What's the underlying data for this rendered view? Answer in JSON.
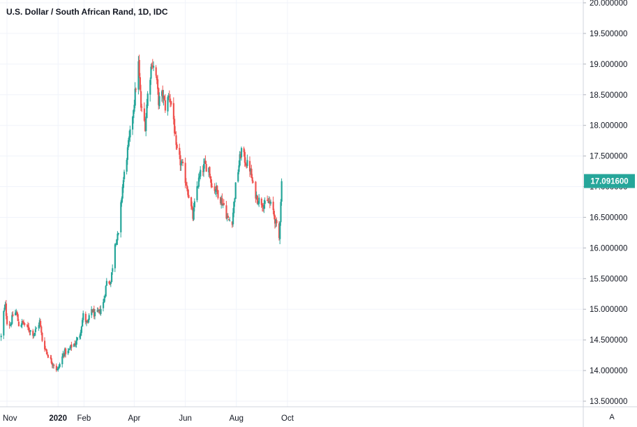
{
  "chart_data": {
    "type": "candlestick",
    "title": "U.S. Dollar / South African Rand, 1D, IDC",
    "ylim": [
      13.5,
      20.0
    ],
    "yticks": [
      "13.500000",
      "14.000000",
      "14.500000",
      "15.000000",
      "15.500000",
      "16.000000",
      "16.500000",
      "17.000000",
      "17.500000",
      "18.000000",
      "18.500000",
      "19.000000",
      "19.500000",
      "20.000000"
    ],
    "xticks": [
      {
        "label": "Nov",
        "date": "2019-11-01",
        "bold": false
      },
      {
        "label": "2020",
        "date": "2020-01-01",
        "bold": true
      },
      {
        "label": "Feb",
        "date": "2020-02-01",
        "bold": false
      },
      {
        "label": "Apr",
        "date": "2020-04-01",
        "bold": false
      },
      {
        "label": "Jun",
        "date": "2020-06-01",
        "bold": false
      },
      {
        "label": "Aug",
        "date": "2020-08-01",
        "bold": false
      },
      {
        "label": "Oct",
        "date": "2020-10-01",
        "bold": false
      }
    ],
    "last_price": "17.091600",
    "last_value": 17.0916,
    "up_color": "#26a69a",
    "down_color": "#ef5350",
    "close_path": [
      [
        "2019-10-25",
        14.55
      ],
      [
        "2019-10-28",
        14.95
      ],
      [
        "2019-10-30",
        15.05
      ],
      [
        "2019-11-01",
        14.8
      ],
      [
        "2019-11-05",
        14.75
      ],
      [
        "2019-11-08",
        14.9
      ],
      [
        "2019-11-12",
        14.95
      ],
      [
        "2019-11-15",
        14.75
      ],
      [
        "2019-11-20",
        14.78
      ],
      [
        "2019-11-25",
        14.7
      ],
      [
        "2019-11-29",
        14.65
      ],
      [
        "2019-12-03",
        14.6
      ],
      [
        "2019-12-06",
        14.68
      ],
      [
        "2019-12-10",
        14.8
      ],
      [
        "2019-12-13",
        14.5
      ],
      [
        "2019-12-17",
        14.35
      ],
      [
        "2019-12-20",
        14.25
      ],
      [
        "2019-12-24",
        14.15
      ],
      [
        "2019-12-27",
        14.1
      ],
      [
        "2019-12-31",
        14.0
      ],
      [
        "2020-01-03",
        14.1
      ],
      [
        "2020-01-08",
        14.3
      ],
      [
        "2020-01-13",
        14.3
      ],
      [
        "2020-01-17",
        14.4
      ],
      [
        "2020-01-22",
        14.45
      ],
      [
        "2020-01-27",
        14.6
      ],
      [
        "2020-01-31",
        14.9
      ],
      [
        "2020-02-05",
        14.75
      ],
      [
        "2020-02-10",
        15.0
      ],
      [
        "2020-02-14",
        14.9
      ],
      [
        "2020-02-19",
        14.95
      ],
      [
        "2020-02-24",
        15.1
      ],
      [
        "2020-02-28",
        15.45
      ],
      [
        "2020-03-04",
        15.45
      ],
      [
        "2020-03-09",
        16.1
      ],
      [
        "2020-03-13",
        16.2
      ],
      [
        "2020-03-18",
        17.0
      ],
      [
        "2020-03-23",
        17.5
      ],
      [
        "2020-03-27",
        17.85
      ],
      [
        "2020-04-01",
        18.4
      ],
      [
        "2020-04-06",
        19.0
      ],
      [
        "2020-04-09",
        18.3
      ],
      [
        "2020-04-14",
        18.0
      ],
      [
        "2020-04-17",
        18.5
      ],
      [
        "2020-04-22",
        19.05
      ],
      [
        "2020-04-27",
        18.8
      ],
      [
        "2020-04-30",
        18.4
      ],
      [
        "2020-05-05",
        18.5
      ],
      [
        "2020-05-08",
        18.3
      ],
      [
        "2020-05-13",
        18.5
      ],
      [
        "2020-05-18",
        18.1
      ],
      [
        "2020-05-21",
        17.6
      ],
      [
        "2020-05-26",
        17.4
      ],
      [
        "2020-05-29",
        17.3
      ],
      [
        "2020-06-03",
        17.0
      ],
      [
        "2020-06-08",
        16.65
      ],
      [
        "2020-06-10",
        16.5
      ],
      [
        "2020-06-15",
        17.0
      ],
      [
        "2020-06-19",
        17.2
      ],
      [
        "2020-06-24",
        17.35
      ],
      [
        "2020-06-29",
        17.3
      ],
      [
        "2020-07-03",
        17.0
      ],
      [
        "2020-07-08",
        16.95
      ],
      [
        "2020-07-13",
        16.8
      ],
      [
        "2020-07-17",
        16.7
      ],
      [
        "2020-07-22",
        16.45
      ],
      [
        "2020-07-27",
        16.45
      ],
      [
        "2020-07-31",
        17.0
      ],
      [
        "2020-08-05",
        17.45
      ],
      [
        "2020-08-07",
        17.6
      ],
      [
        "2020-08-12",
        17.4
      ],
      [
        "2020-08-17",
        17.3
      ],
      [
        "2020-08-21",
        17.0
      ],
      [
        "2020-08-26",
        16.8
      ],
      [
        "2020-08-31",
        16.75
      ],
      [
        "2020-09-04",
        16.7
      ],
      [
        "2020-09-09",
        16.75
      ],
      [
        "2020-09-14",
        16.6
      ],
      [
        "2020-09-17",
        16.4
      ],
      [
        "2020-09-21",
        16.15
      ],
      [
        "2020-09-23",
        16.8
      ],
      [
        "2020-09-24",
        17.09
      ]
    ]
  },
  "axis_button": {
    "label": "A"
  }
}
